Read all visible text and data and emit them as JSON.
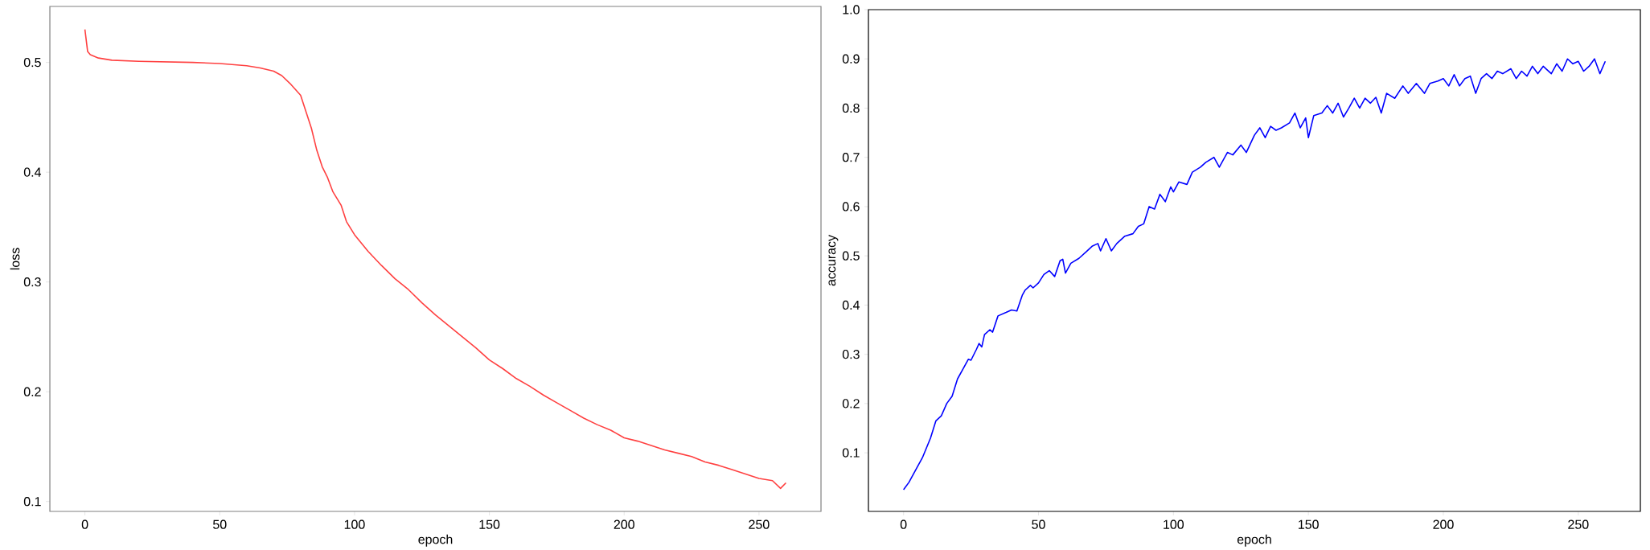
{
  "chart_data": [
    {
      "type": "line",
      "xlabel": "epoch",
      "ylabel": "loss",
      "color": "#ff4040",
      "xlim": [
        -13,
        273
      ],
      "ylim": [
        0.091,
        0.551
      ],
      "xticks": [
        0,
        50,
        100,
        150,
        200,
        250
      ],
      "yticks": [
        0.1,
        0.2,
        0.3,
        0.4,
        0.5
      ],
      "x": [
        0,
        1,
        2,
        5,
        10,
        20,
        30,
        40,
        50,
        60,
        65,
        70,
        73,
        76,
        80,
        82,
        84,
        86,
        88,
        90,
        92,
        95,
        97,
        100,
        105,
        110,
        115,
        120,
        125,
        130,
        135,
        140,
        145,
        150,
        155,
        160,
        165,
        170,
        175,
        180,
        185,
        190,
        195,
        200,
        205,
        210,
        215,
        220,
        225,
        230,
        235,
        240,
        245,
        250,
        255,
        258,
        260
      ],
      "values": [
        0.53,
        0.51,
        0.507,
        0.504,
        0.502,
        0.501,
        0.5005,
        0.5,
        0.499,
        0.497,
        0.495,
        0.492,
        0.488,
        0.481,
        0.47,
        0.455,
        0.44,
        0.42,
        0.405,
        0.395,
        0.382,
        0.37,
        0.355,
        0.343,
        0.328,
        0.315,
        0.303,
        0.293,
        0.281,
        0.27,
        0.26,
        0.25,
        0.24,
        0.229,
        0.221,
        0.212,
        0.205,
        0.197,
        0.19,
        0.183,
        0.176,
        0.17,
        0.165,
        0.158,
        0.155,
        0.151,
        0.147,
        0.144,
        0.141,
        0.136,
        0.133,
        0.129,
        0.125,
        0.121,
        0.119,
        0.112,
        0.117
      ]
    },
    {
      "type": "line",
      "xlabel": "epoch",
      "ylabel": "accuracy",
      "color": "#0000ff",
      "xlim": [
        -13,
        273
      ],
      "ylim": [
        -0.019,
        1.0
      ],
      "xticks": [
        0,
        50,
        100,
        150,
        200,
        250
      ],
      "yticks": [
        0.1,
        0.2,
        0.3,
        0.4,
        0.5,
        0.6,
        0.7,
        0.8,
        0.9,
        {
          "value": 1.0,
          "label": "1.0"
        }
      ],
      "x": [
        0,
        2,
        5,
        7,
        10,
        12,
        14,
        16,
        18,
        20,
        22,
        24,
        25,
        27,
        28,
        29,
        30,
        32,
        33,
        35,
        38,
        40,
        42,
        44,
        45,
        47,
        48,
        50,
        52,
        54,
        56,
        58,
        59,
        60,
        62,
        65,
        68,
        70,
        72,
        73,
        75,
        77,
        79,
        82,
        85,
        87,
        89,
        91,
        93,
        95,
        97,
        99,
        100,
        102,
        105,
        107,
        110,
        112,
        115,
        117,
        120,
        122,
        125,
        127,
        130,
        132,
        134,
        136,
        138,
        140,
        143,
        145,
        147,
        149,
        150,
        152,
        155,
        157,
        159,
        161,
        163,
        165,
        167,
        169,
        171,
        173,
        175,
        177,
        179,
        182,
        185,
        187,
        190,
        193,
        195,
        198,
        200,
        202,
        204,
        206,
        208,
        210,
        212,
        214,
        216,
        218,
        220,
        222,
        225,
        227,
        229,
        231,
        233,
        235,
        237,
        240,
        242,
        244,
        246,
        248,
        250,
        252,
        254,
        256,
        258,
        260
      ],
      "values": [
        0.025,
        0.04,
        0.07,
        0.09,
        0.13,
        0.165,
        0.175,
        0.2,
        0.215,
        0.25,
        0.27,
        0.29,
        0.288,
        0.31,
        0.322,
        0.315,
        0.34,
        0.35,
        0.345,
        0.378,
        0.385,
        0.39,
        0.388,
        0.42,
        0.43,
        0.44,
        0.435,
        0.445,
        0.462,
        0.47,
        0.458,
        0.49,
        0.493,
        0.465,
        0.485,
        0.495,
        0.51,
        0.52,
        0.525,
        0.51,
        0.535,
        0.51,
        0.525,
        0.54,
        0.545,
        0.56,
        0.565,
        0.6,
        0.595,
        0.625,
        0.61,
        0.64,
        0.63,
        0.65,
        0.645,
        0.67,
        0.68,
        0.69,
        0.7,
        0.68,
        0.71,
        0.705,
        0.725,
        0.71,
        0.745,
        0.76,
        0.74,
        0.763,
        0.755,
        0.76,
        0.77,
        0.79,
        0.76,
        0.78,
        0.74,
        0.785,
        0.79,
        0.805,
        0.79,
        0.81,
        0.782,
        0.8,
        0.82,
        0.8,
        0.82,
        0.81,
        0.822,
        0.79,
        0.83,
        0.82,
        0.845,
        0.83,
        0.85,
        0.83,
        0.85,
        0.855,
        0.86,
        0.845,
        0.868,
        0.845,
        0.86,
        0.865,
        0.83,
        0.86,
        0.87,
        0.86,
        0.875,
        0.87,
        0.88,
        0.86,
        0.875,
        0.865,
        0.885,
        0.87,
        0.885,
        0.87,
        0.89,
        0.875,
        0.9,
        0.89,
        0.895,
        0.875,
        0.885,
        0.9,
        0.87,
        0.895
      ]
    }
  ]
}
